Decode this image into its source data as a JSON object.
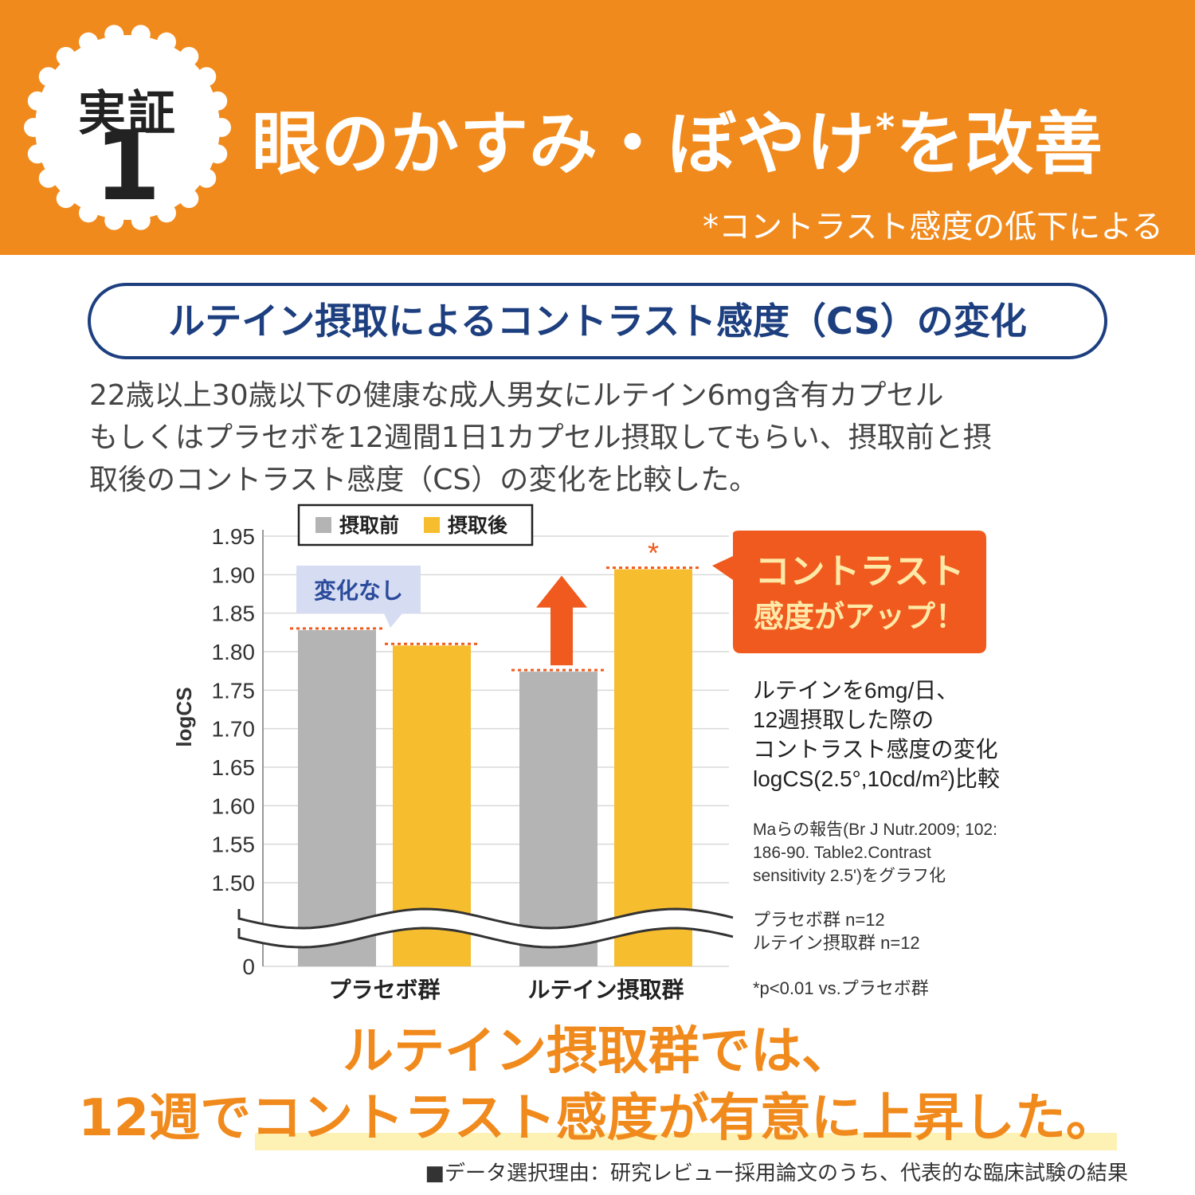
{
  "header": {
    "badge_label": "実証",
    "badge_number": "1",
    "title": "眼のかすみ・ぼやけ",
    "title_mark": "*",
    "title_end": "を改善",
    "note": "*コントラスト感度の低下による",
    "background_color": "#f18a1c"
  },
  "subheading": "ルテイン摂取によるコントラスト感度（CS）の変化",
  "description": [
    "22歳以上30歳以下の健康な成人男女にルテイン6mg含有カプセル",
    "もしくはプラセボを12週間1日1カプセル摂取してもらい、摂取前と摂",
    "取後のコントラスト感度（CS）の変化を比較した。"
  ],
  "chart_data": {
    "type": "bar",
    "categories": [
      "プラセボ群",
      "ルテイン摂取群"
    ],
    "series": [
      {
        "name": "摂取前",
        "color": "#b4b4b4",
        "values": [
          1.828,
          1.774
        ]
      },
      {
        "name": "摂取後",
        "color": "#f6bd2e",
        "values": [
          1.808,
          1.907
        ]
      }
    ],
    "ylabel": "logCS",
    "ylim": [
      1.5,
      1.95
    ],
    "y_ticks": [
      "1.95",
      "1.90",
      "1.85",
      "1.80",
      "1.75",
      "1.70",
      "1.65",
      "1.60",
      "1.55",
      "1.50"
    ],
    "y_zero_label": "0",
    "axis_break": true,
    "grid": true,
    "legend_position": "top-left",
    "annotations": {
      "no_change": "変化なし",
      "significance_mark": "*",
      "callout_line1": "コントラスト",
      "callout_line2": "感度がアップ！"
    },
    "side_notes": {
      "method": [
        "ルテインを6mg/日、",
        "12週摂取した際の",
        "コントラスト感度の変化",
        "logCS(2.5°,10cd/m²)比較"
      ],
      "source": [
        "Maらの報告(Br J Nutr.2009; 102:",
        "186-90. Table2.Contrast",
        "sensitivity 2.5')をグラフ化"
      ],
      "samples": [
        "プラセボ群 n=12",
        "ルテイン摂取群 n=12"
      ],
      "significance": "*p<0.01 vs.プラセボ群"
    }
  },
  "conclusion": {
    "line1": "ルテイン摂取群では、",
    "line2": "12週でコントラスト感度が有意に上昇した。"
  },
  "footnote": "■データ選択理由：研究レビュー採用論文のうち、代表的な臨床試験の結果"
}
